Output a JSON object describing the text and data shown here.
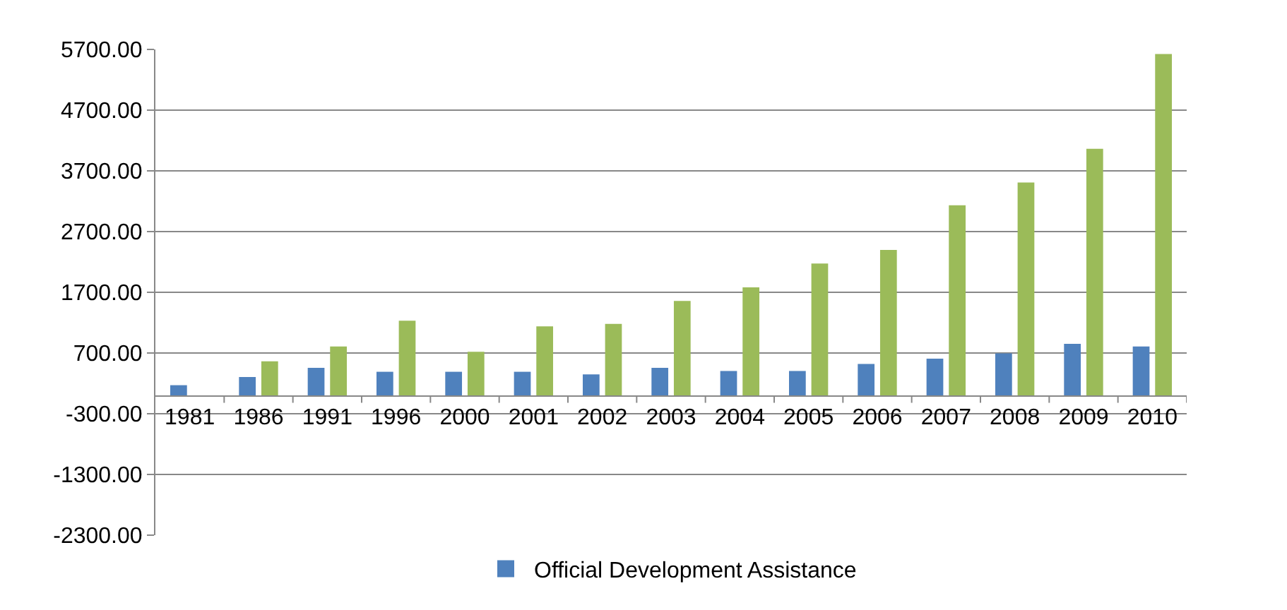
{
  "chart_data": {
    "type": "bar",
    "categories": [
      "1981",
      "1986",
      "1991",
      "1996",
      "2000",
      "2001",
      "2002",
      "2003",
      "2004",
      "2005",
      "2006",
      "2007",
      "2008",
      "2009",
      "2010"
    ],
    "series": [
      {
        "name": "Official Development Assistance",
        "color": "#4f81bd",
        "values": [
          170,
          305,
          456,
          391,
          391,
          391,
          348,
          456,
          404,
          404,
          521,
          607,
          693,
          851,
          808
        ]
      },
      {
        "color": "#9bbb59",
        "values": [
          null,
          564,
          808,
          1233,
          721,
          1138,
          1181,
          1557,
          1780,
          2175,
          2399,
          3134,
          3508,
          4063,
          5624
        ]
      }
    ],
    "ylim": [
      -2300,
      5700
    ],
    "yticks": [
      {
        "value": -2300,
        "label": "-2300.00"
      },
      {
        "value": -1300,
        "label": "-1300.00"
      },
      {
        "value": -300,
        "label": "-300.00"
      },
      {
        "value": 700,
        "label": "700.00"
      },
      {
        "value": 1700,
        "label": "1700.00"
      },
      {
        "value": 2700,
        "label": "2700.00"
      },
      {
        "value": 3700,
        "label": "3700.00"
      },
      {
        "value": 4700,
        "label": "4700.00"
      },
      {
        "value": 5700,
        "label": "5700.00"
      }
    ],
    "grid": "y",
    "legend": "bottom"
  }
}
